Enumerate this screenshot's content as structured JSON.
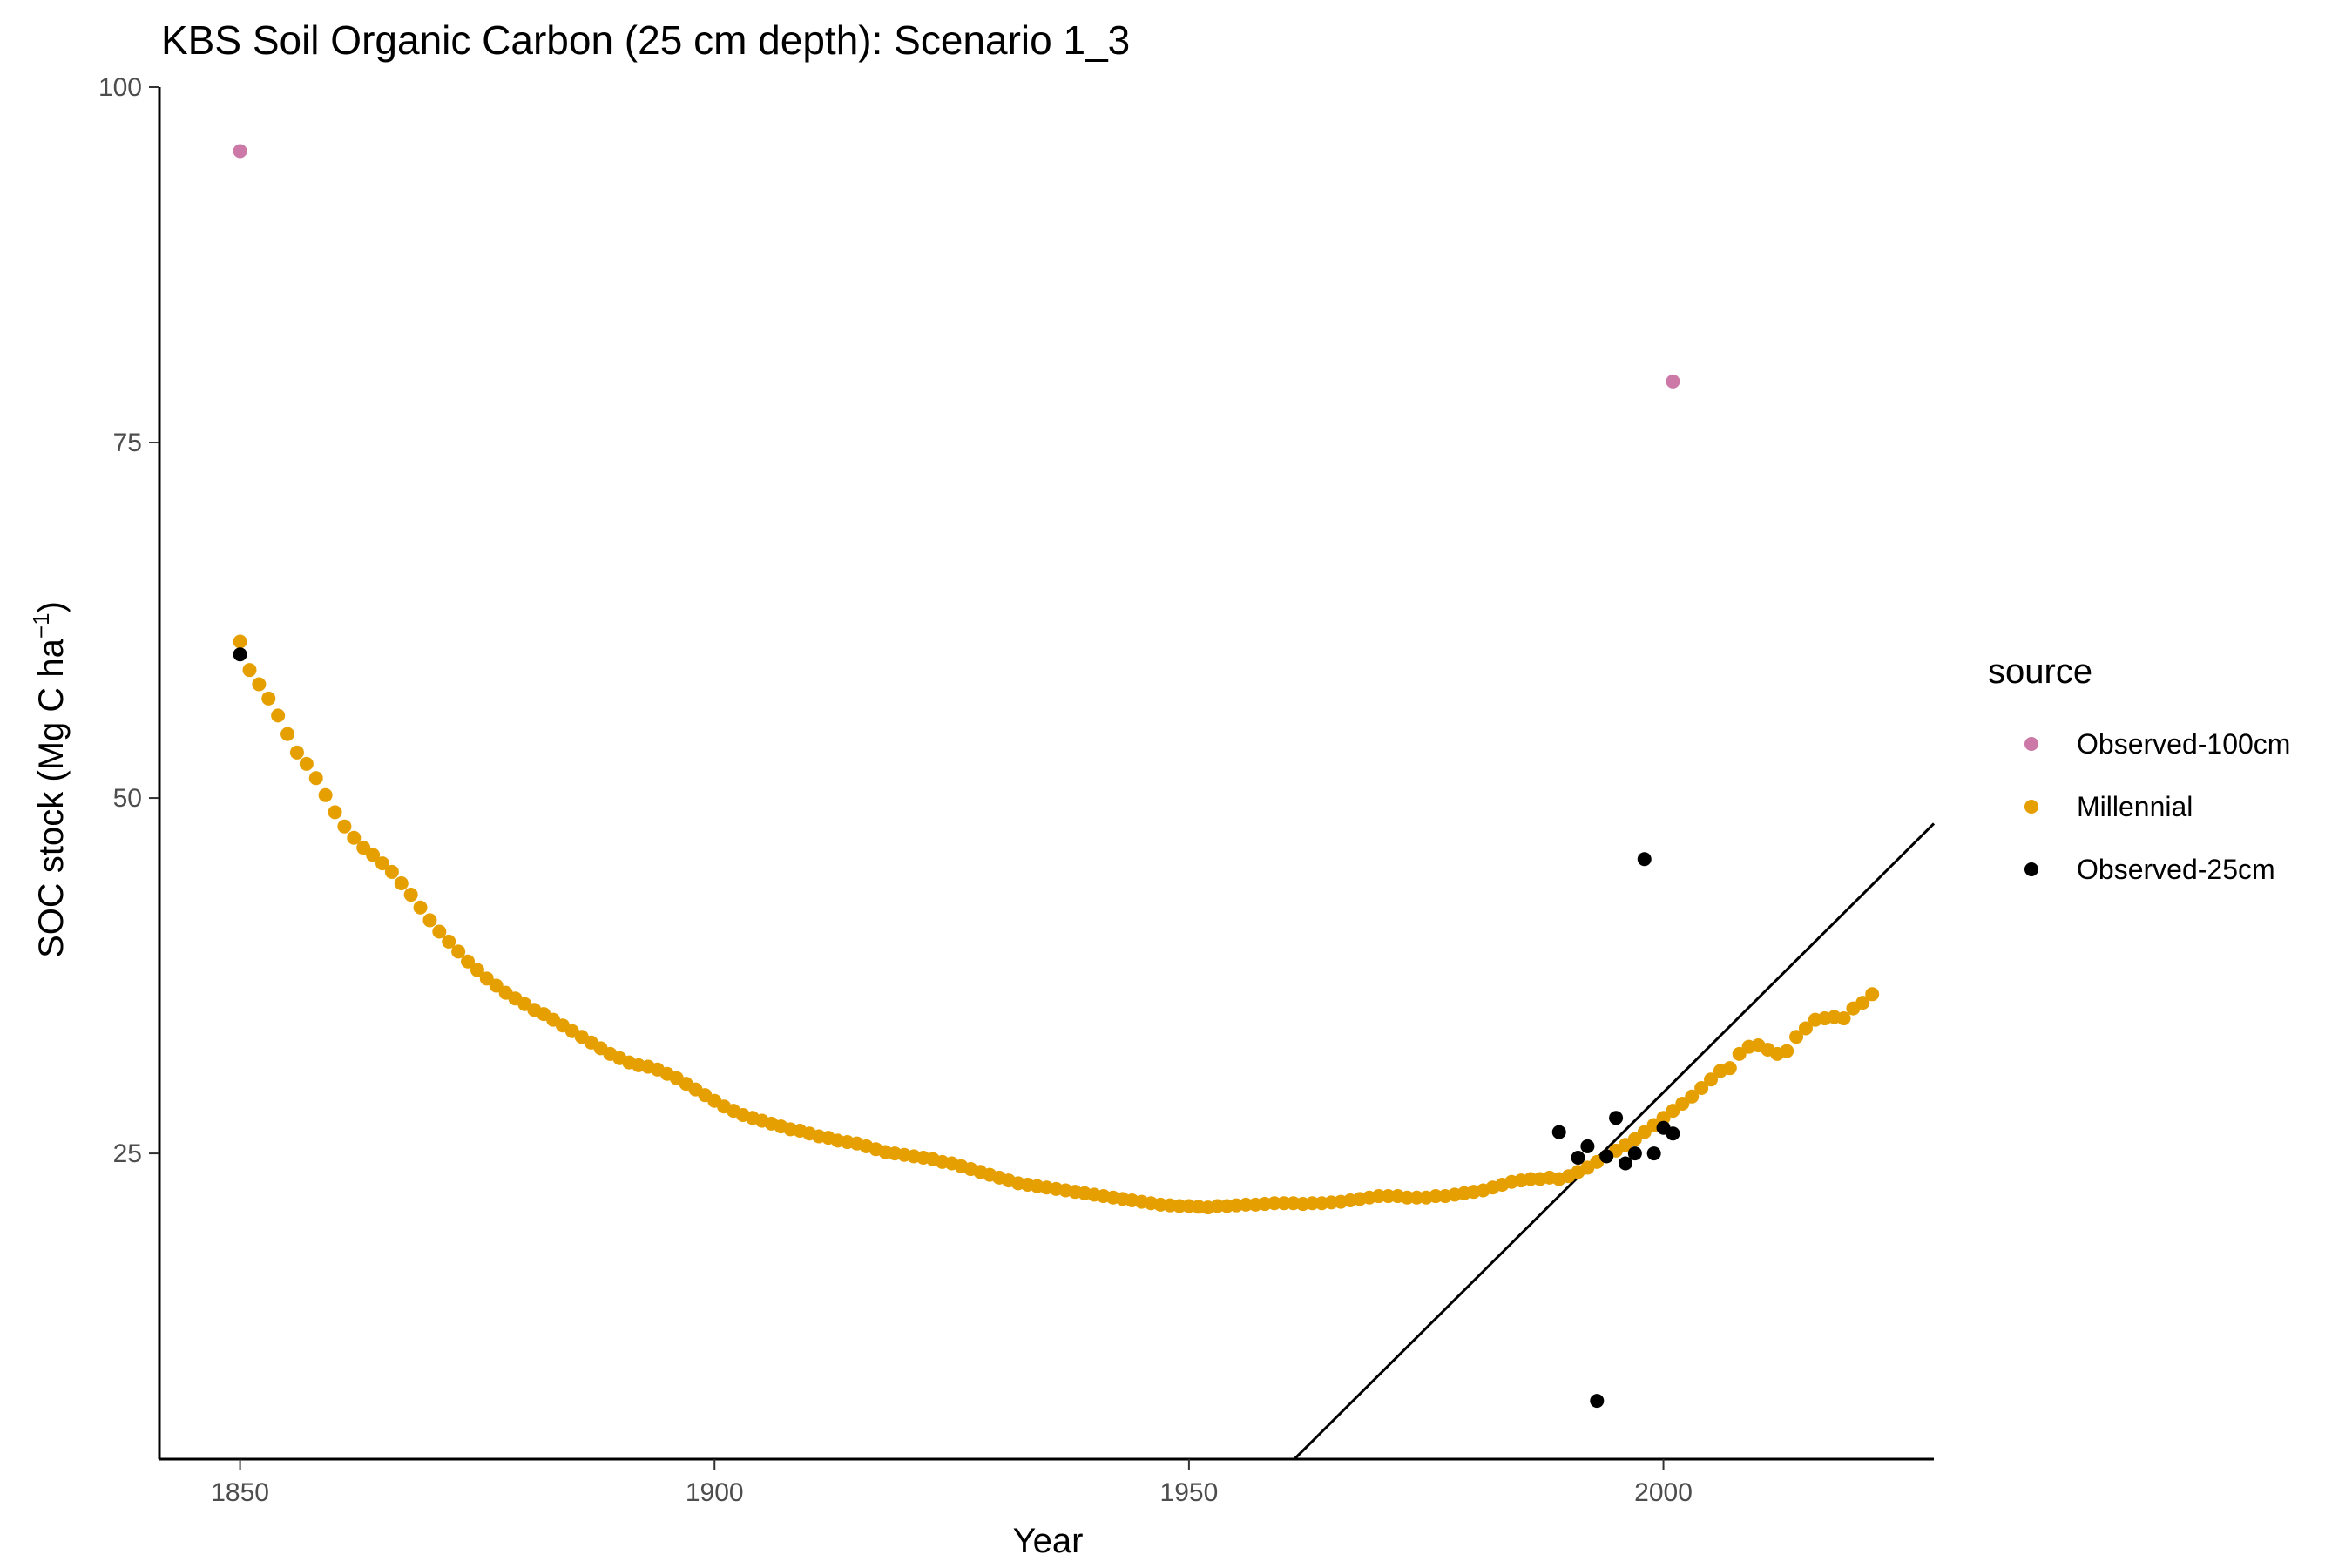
{
  "chart_data": {
    "type": "scatter",
    "title": "KBS Soil Organic Carbon (25 cm depth): Scenario  1_3",
    "xlabel": "Year",
    "ylabel_main": "SOC stock (Mg C ha",
    "ylabel_sup": "−1",
    "ylabel_close": ")",
    "xlim": [
      1841.5,
      2028.5
    ],
    "ylim": [
      3.5,
      100
    ],
    "xticks": [
      1850,
      1900,
      1950,
      2000
    ],
    "yticks": [
      25,
      50,
      75,
      100
    ],
    "grid": false,
    "legend": {
      "title": "source",
      "position": "right",
      "entries": [
        "Observed-100cm",
        "Millennial",
        "Observed-25cm"
      ]
    },
    "colors": {
      "Observed-100cm": "#cc79a7",
      "Millennial": "#e69f00",
      "Observed-25cm": "#000000",
      "trend_line": "#000000"
    },
    "series": [
      {
        "name": "Observed-100cm",
        "points": [
          [
            1850,
            95.5
          ],
          [
            2001,
            79.3
          ]
        ]
      },
      {
        "name": "Millennial",
        "x_start": 1850,
        "x_step": 1,
        "values": [
          61.0,
          59.0,
          58.0,
          57.0,
          55.8,
          54.5,
          53.2,
          52.4,
          51.4,
          50.2,
          49.0,
          48.0,
          47.2,
          46.5,
          46.0,
          45.4,
          44.8,
          44.0,
          43.2,
          42.3,
          41.4,
          40.6,
          39.9,
          39.2,
          38.5,
          37.9,
          37.3,
          36.8,
          36.3,
          35.9,
          35.5,
          35.1,
          34.8,
          34.4,
          34.0,
          33.6,
          33.2,
          32.8,
          32.4,
          32.0,
          31.7,
          31.4,
          31.2,
          31.1,
          30.9,
          30.6,
          30.3,
          29.9,
          29.5,
          29.1,
          28.7,
          28.3,
          28.0,
          27.7,
          27.5,
          27.3,
          27.1,
          26.9,
          26.7,
          26.6,
          26.4,
          26.2,
          26.1,
          25.9,
          25.8,
          25.7,
          25.5,
          25.3,
          25.1,
          25.0,
          24.9,
          24.8,
          24.7,
          24.6,
          24.4,
          24.3,
          24.1,
          23.9,
          23.7,
          23.5,
          23.3,
          23.1,
          22.9,
          22.8,
          22.7,
          22.6,
          22.5,
          22.4,
          22.3,
          22.2,
          22.1,
          22.0,
          21.9,
          21.8,
          21.7,
          21.6,
          21.5,
          21.4,
          21.35,
          21.3,
          21.3,
          21.25,
          21.2,
          21.3,
          21.3,
          21.35,
          21.4,
          21.4,
          21.45,
          21.5,
          21.5,
          21.5,
          21.45,
          21.5,
          21.5,
          21.55,
          21.6,
          21.7,
          21.8,
          21.9,
          22.0,
          22.0,
          22.0,
          21.9,
          21.9,
          21.9,
          22.0,
          22.0,
          22.1,
          22.2,
          22.3,
          22.4,
          22.6,
          22.8,
          23.0,
          23.1,
          23.2,
          23.2,
          23.3,
          23.2,
          23.4,
          23.7,
          24.0,
          24.4,
          24.8,
          25.2,
          25.6,
          26.0,
          26.5,
          27.0,
          27.5,
          28.0,
          28.5,
          29.0,
          29.6,
          30.2,
          30.8,
          31.0,
          32.0,
          32.5,
          32.6,
          32.3,
          32.0,
          32.2,
          33.2,
          33.8,
          34.4,
          34.5,
          34.6,
          34.5,
          35.2,
          35.6,
          36.2
        ]
      },
      {
        "name": "Observed-25cm",
        "points": [
          [
            1850,
            60.1
          ],
          [
            1989,
            26.5
          ],
          [
            1991,
            24.7
          ],
          [
            1992,
            25.5
          ],
          [
            1993,
            7.6
          ],
          [
            1994,
            24.8
          ],
          [
            1995,
            27.5
          ],
          [
            1996,
            24.3
          ],
          [
            1997,
            25.0
          ],
          [
            1998,
            45.7
          ],
          [
            1999,
            25.0
          ],
          [
            2000,
            26.8
          ],
          [
            2001,
            26.4
          ]
        ]
      }
    ],
    "trend_line": {
      "x": [
        1961.1,
        2028.5
      ],
      "y": [
        3.5,
        48.2
      ]
    }
  }
}
